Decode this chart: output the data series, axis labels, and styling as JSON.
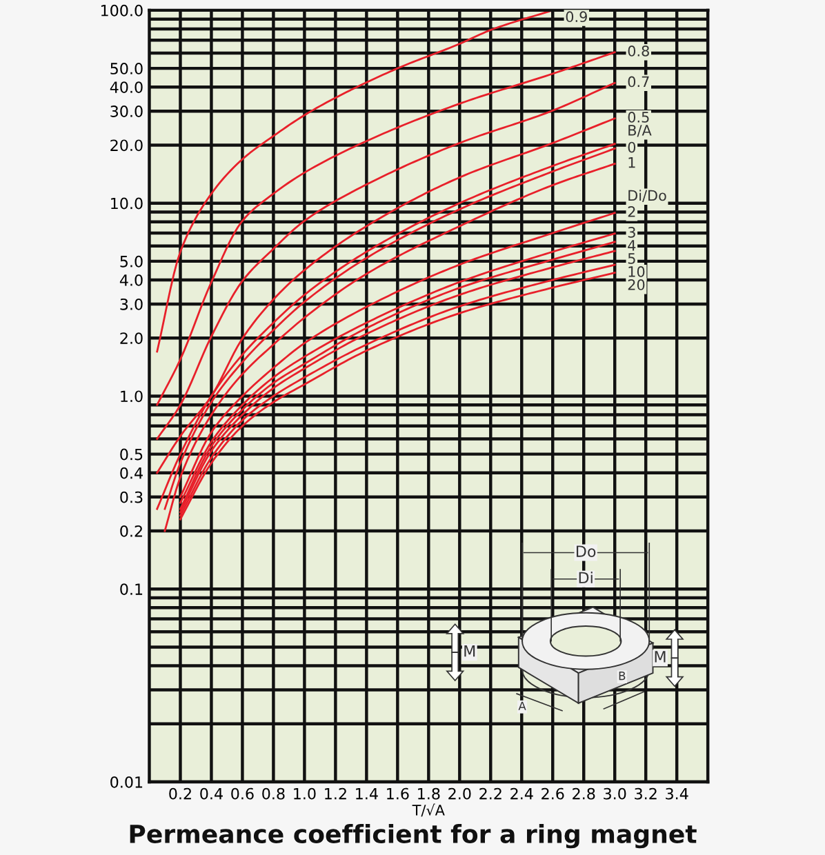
{
  "chart_data": {
    "type": "line",
    "title": "Permeance coefficient for a ring magnet",
    "xlabel": "T/√A",
    "annotations": [
      "B/A",
      "Di/Do",
      "Do",
      "Di",
      "M",
      "M",
      "A",
      "B"
    ],
    "log": "y",
    "grid": true,
    "legend": false,
    "marker": "none",
    "line_style": "solid",
    "xlim": [
      0,
      3.6
    ],
    "ylim": [
      0.01,
      100
    ],
    "xticks": [
      0.2,
      0.4,
      0.6,
      0.8,
      {
        "value": 1,
        "label": "1.0"
      },
      1.2,
      1.4,
      1.6,
      1.8,
      {
        "value": 2,
        "label": "2.0"
      },
      2.2,
      2.4,
      2.6,
      2.8,
      {
        "value": 3,
        "label": "3.0"
      },
      3.2,
      3.4
    ],
    "yticks": [
      {
        "value": 0.01,
        "label": "0.01"
      },
      {
        "value": 0.02,
        "label": null
      },
      {
        "value": 0.03,
        "label": null
      },
      {
        "value": 0.04,
        "label": null
      },
      {
        "value": 0.05,
        "label": null
      },
      {
        "value": 0.06,
        "label": null
      },
      {
        "value": 0.07,
        "label": null
      },
      {
        "value": 0.08,
        "label": null
      },
      {
        "value": 0.09,
        "label": null
      },
      0.1,
      0.2,
      0.3,
      0.4,
      0.5,
      {
        "value": 0.6,
        "label": null
      },
      {
        "value": 0.7,
        "label": null
      },
      {
        "value": 0.8,
        "label": null
      },
      {
        "value": 0.9,
        "label": null
      },
      {
        "value": 1,
        "label": "1.0"
      },
      {
        "value": 2,
        "label": "2.0"
      },
      {
        "value": 3,
        "label": "3.0"
      },
      {
        "value": 4,
        "label": "4.0"
      },
      {
        "value": 5,
        "label": "5.0"
      },
      {
        "value": 6,
        "label": null
      },
      {
        "value": 7,
        "label": null
      },
      {
        "value": 8,
        "label": null
      },
      {
        "value": 9,
        "label": null
      },
      {
        "value": 10,
        "label": "10.0"
      },
      {
        "value": 20,
        "label": "20.0"
      },
      {
        "value": 30,
        "label": "30.0"
      },
      {
        "value": 40,
        "label": "40.0"
      },
      {
        "value": 50,
        "label": "50.0"
      },
      {
        "value": 60,
        "label": null
      },
      {
        "value": 70,
        "label": null
      },
      {
        "value": 80,
        "label": null
      },
      {
        "value": 90,
        "label": null
      },
      {
        "value": 100,
        "label": "100.0"
      }
    ],
    "series": [
      {
        "name": "0.9",
        "color": "#e8202a",
        "x": [
          0.05,
          0.2,
          0.4,
          0.6,
          0.8,
          1.0,
          1.2,
          1.6,
          2.0,
          2.2,
          2.6
        ],
        "values": [
          1.7,
          5.6,
          11.2,
          16.9,
          22.3,
          28.6,
          35.2,
          50,
          67,
          79,
          100
        ]
      },
      {
        "name": "0.8",
        "color": "#e8202a",
        "x": [
          0.05,
          0.2,
          0.4,
          0.6,
          0.8,
          1.0,
          1.4,
          2.0,
          2.6,
          3.0
        ],
        "values": [
          0.9,
          1.55,
          3.9,
          8.1,
          11.2,
          14.4,
          21,
          32.8,
          46.9,
          60.6
        ]
      },
      {
        "name": "0.7",
        "color": "#e8202a",
        "x": [
          0.05,
          0.2,
          0.4,
          0.6,
          0.8,
          1.0,
          1.4,
          2.0,
          2.6,
          3.0
        ],
        "values": [
          0.6,
          0.9,
          2.04,
          3.95,
          5.8,
          8.1,
          12.5,
          20.5,
          30.2,
          42
        ]
      },
      {
        "name": "0.5",
        "color": "#e8202a",
        "x": [
          0.05,
          0.2,
          0.4,
          0.6,
          0.8,
          1.0,
          1.4,
          2.0,
          2.6,
          3.0
        ],
        "values": [
          0.4,
          0.62,
          1.0,
          1.99,
          3.17,
          4.5,
          7.6,
          13.6,
          20.5,
          27.5
        ]
      },
      {
        "color": "#e8202a",
        "x": [
          0.05,
          0.2,
          0.4,
          0.6,
          0.8,
          1.0,
          1.4,
          2.0,
          2.6,
          3.0
        ],
        "values": [
          0.26,
          0.5,
          1.0,
          1.64,
          2.4,
          3.35,
          5.6,
          10,
          15.6,
          20.3
        ]
      },
      {
        "name": "0",
        "color": "#e8202a",
        "x": [
          0.1,
          0.2,
          0.4,
          0.6,
          0.8,
          1.0,
          1.4,
          2.0,
          2.6,
          3.0
        ],
        "values": [
          0.26,
          0.45,
          0.93,
          1.5,
          2.2,
          3.08,
          5.2,
          9.3,
          14.6,
          19.2
        ]
      },
      {
        "name": "1",
        "color": "#e8202a",
        "x": [
          0.1,
          0.2,
          0.4,
          0.6,
          0.8,
          1.0,
          1.4,
          2.0,
          2.6,
          3.0
        ],
        "values": [
          0.2,
          0.38,
          0.8,
          1.3,
          1.85,
          2.55,
          4.3,
          7.6,
          12.4,
          16.0
        ]
      },
      {
        "name": "2",
        "color": "#e8202a",
        "x": [
          0.2,
          0.4,
          0.6,
          0.8,
          1.0,
          1.4,
          2.0,
          2.6,
          3.0
        ],
        "values": [
          0.3,
          0.65,
          1.0,
          1.4,
          1.88,
          2.9,
          4.8,
          7.0,
          8.9
        ]
      },
      {
        "name": "3",
        "color": "#e8202a",
        "x": [
          0.2,
          0.4,
          0.6,
          0.8,
          1.0,
          1.4,
          2.0,
          2.6,
          3.0
        ],
        "values": [
          0.28,
          0.58,
          0.9,
          1.25,
          1.6,
          2.4,
          3.9,
          5.6,
          6.96
        ]
      },
      {
        "name": "4",
        "color": "#e8202a",
        "x": [
          0.2,
          0.4,
          0.6,
          0.8,
          1.0,
          1.4,
          2.0,
          2.6,
          3.0
        ],
        "values": [
          0.26,
          0.55,
          0.85,
          1.17,
          1.47,
          2.25,
          3.64,
          5.1,
          6.3
        ]
      },
      {
        "name": "5",
        "color": "#e8202a",
        "x": [
          0.2,
          0.4,
          0.6,
          0.8,
          1.0,
          1.4,
          2.0,
          2.6,
          3.0
        ],
        "values": [
          0.25,
          0.52,
          0.8,
          1.1,
          1.39,
          2.1,
          3.35,
          4.65,
          5.65
        ]
      },
      {
        "name": "10",
        "color": "#e8202a",
        "x": [
          0.2,
          0.4,
          0.6,
          0.8,
          1.0,
          1.4,
          2.0,
          2.6,
          3.0
        ],
        "values": [
          0.24,
          0.48,
          0.75,
          1.0,
          1.25,
          1.85,
          2.92,
          4.0,
          4.79
        ]
      },
      {
        "name": "20",
        "color": "#e8202a",
        "x": [
          0.2,
          0.4,
          0.6,
          0.8,
          1.0,
          1.4,
          2.0,
          2.6,
          3.0
        ],
        "values": [
          0.23,
          0.45,
          0.7,
          0.93,
          1.15,
          1.72,
          2.69,
          3.65,
          4.36
        ]
      }
    ]
  }
}
